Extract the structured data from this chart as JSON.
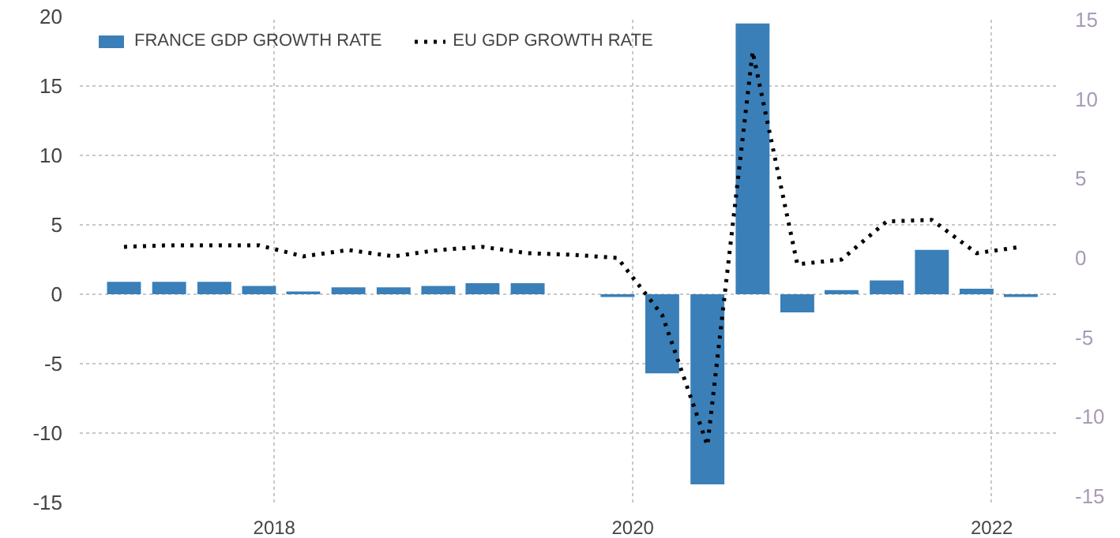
{
  "chart_data": {
    "type": "bar",
    "x": [
      "2017-03",
      "2017-06",
      "2017-09",
      "2017-12",
      "2018-03",
      "2018-06",
      "2018-09",
      "2018-12",
      "2019-03",
      "2019-06",
      "2019-09",
      "2019-12",
      "2020-03",
      "2020-06",
      "2020-09",
      "2020-12",
      "2021-03",
      "2021-06",
      "2021-09",
      "2021-12",
      "2022-03"
    ],
    "series": [
      {
        "name": "FRANCE GDP GROWTH RATE",
        "color": "#3a7fb8",
        "values": [
          0.9,
          0.9,
          0.9,
          0.6,
          0.2,
          0.5,
          0.5,
          0.6,
          0.8,
          0.8,
          null,
          -0.2,
          -5.7,
          -13.7,
          19.5,
          -1.3,
          0.3,
          1.0,
          3.2,
          0.4,
          -0.2
        ]
      },
      {
        "name": "EU GDP GROWTH RATE",
        "type": "line",
        "axis": "y2",
        "color": "#000000",
        "line_style": "dotted",
        "values": [
          0.7,
          0.8,
          0.8,
          0.8,
          0.1,
          0.5,
          0.1,
          0.5,
          0.7,
          0.3,
          0.2,
          0.0,
          -3.6,
          -11.8,
          13.0,
          -0.4,
          -0.1,
          2.3,
          2.4,
          0.3,
          0.7
        ]
      }
    ],
    "xlim": [
      "2016-12-01",
      "2022-05-15"
    ],
    "xticks": [
      {
        "value": "2018-01-01",
        "label": "2018"
      },
      {
        "value": "2020-01-01",
        "label": "2020"
      },
      {
        "value": "2022-01-01",
        "label": "2022"
      }
    ],
    "ylim": [
      -15,
      20
    ],
    "yticks": [
      -15,
      -10,
      -5,
      0,
      5,
      10,
      15,
      20
    ],
    "y2lim": [
      -15.4,
      15.2
    ],
    "y2ticks": [
      -15,
      -10,
      -5,
      0,
      5,
      10,
      15
    ],
    "grid": true,
    "legend": "top left"
  }
}
